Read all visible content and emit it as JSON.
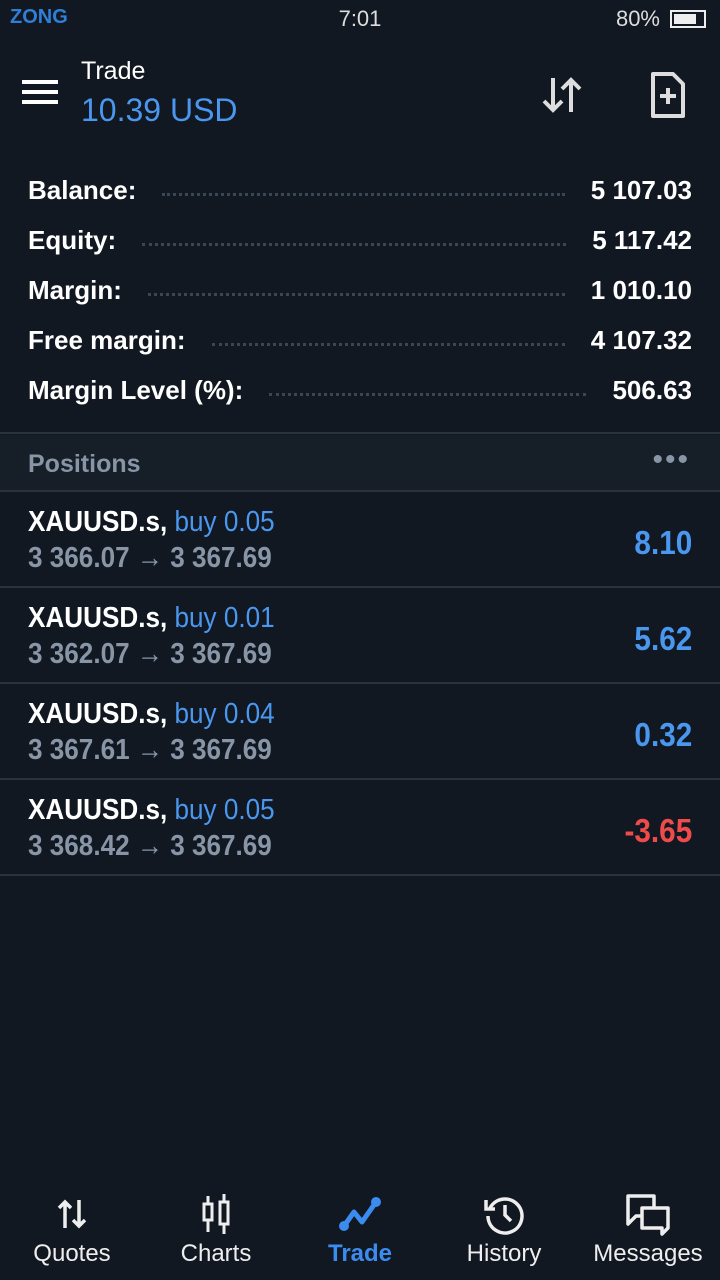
{
  "status": {
    "carrier": "ZONG",
    "time": "7:01",
    "battery": "80%",
    "battery_level": 0.8
  },
  "header": {
    "title": "Trade",
    "subtitle": "10.39 USD"
  },
  "summary": [
    {
      "label": "Balance:",
      "value": "5 107.03"
    },
    {
      "label": "Equity:",
      "value": "5 117.42"
    },
    {
      "label": "Margin:",
      "value": "1 010.10"
    },
    {
      "label": "Free margin:",
      "value": "4 107.32"
    },
    {
      "label": "Margin Level (%):",
      "value": "506.63"
    }
  ],
  "positions": {
    "title": "Positions",
    "more": "•••",
    "items": [
      {
        "symbol": "XAUUSD.s,",
        "side": "buy 0.05",
        "prices": "3 366.07 → 3 367.69",
        "profit": "8.10",
        "color": "#4a97f0"
      },
      {
        "symbol": "XAUUSD.s,",
        "side": "buy 0.01",
        "prices": "3 362.07 → 3 367.69",
        "profit": "5.62",
        "color": "#4a97f0"
      },
      {
        "symbol": "XAUUSD.s,",
        "side": "buy 0.04",
        "prices": "3 367.61 → 3 367.69",
        "profit": "0.32",
        "color": "#4a97f0"
      },
      {
        "symbol": "XAUUSD.s,",
        "side": "buy 0.05",
        "prices": "3 368.42 → 3 367.69",
        "profit": "-3.65",
        "color": "#f04b4b"
      }
    ]
  },
  "nav": [
    {
      "label": "Quotes"
    },
    {
      "label": "Charts"
    },
    {
      "label": "Trade",
      "active": true
    },
    {
      "label": "History"
    },
    {
      "label": "Messages"
    }
  ]
}
